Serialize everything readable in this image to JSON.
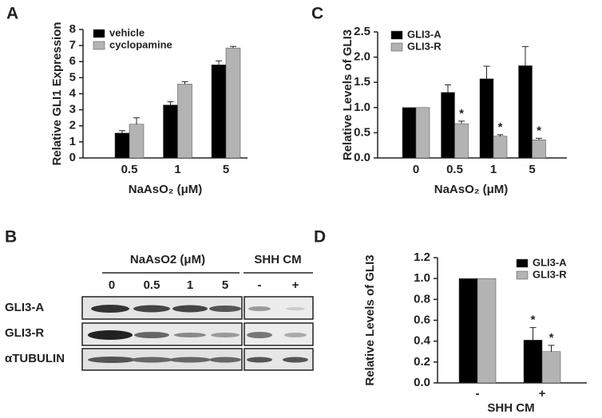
{
  "chart_data": [
    {
      "type": "bar",
      "panel_label": "A",
      "y_label": "Relative GLI1 Expression",
      "x_label": "NaAsO₂ (μM)",
      "categories": [
        "0.5",
        "1",
        "5"
      ],
      "series": [
        {
          "name": "vehicle",
          "color": "#000000",
          "values": [
            1.55,
            3.3,
            5.8
          ],
          "errors": [
            0.15,
            0.2,
            0.25
          ]
        },
        {
          "name": "cyclopamine",
          "color": "#b3b3b3",
          "values": [
            2.1,
            4.6,
            6.85
          ],
          "errors": [
            0.4,
            0.15,
            0.1
          ]
        }
      ],
      "ylim": [
        0,
        8
      ],
      "yticks": [
        0,
        1,
        2,
        3,
        4,
        5,
        6,
        7,
        8
      ]
    },
    {
      "type": "bar",
      "panel_label": "C",
      "y_label": "Relative Levels of GLI3",
      "x_label": "NaAsO₂ (μM)",
      "categories": [
        "0",
        "0.5",
        "1",
        "5"
      ],
      "series": [
        {
          "name": "GLI3-A",
          "color": "#000000",
          "values": [
            1.0,
            1.3,
            1.57,
            1.83
          ],
          "errors": [
            0,
            0.15,
            0.25,
            0.38
          ],
          "markers": [
            null,
            null,
            null,
            null
          ]
        },
        {
          "name": "GLI3-R",
          "color": "#b3b3b3",
          "values": [
            1.0,
            0.68,
            0.43,
            0.36
          ],
          "errors": [
            0,
            0.05,
            0.03,
            0.03
          ],
          "markers": [
            null,
            "*",
            "*",
            "*"
          ]
        }
      ],
      "ylim": [
        0,
        2.5
      ],
      "yticks": [
        {
          "value": 0,
          "label": "0.0"
        },
        0.5,
        {
          "value": 1,
          "label": "1.0"
        },
        1.5,
        {
          "value": 2,
          "label": "2.0"
        },
        2.5
      ]
    },
    {
      "type": "bar",
      "panel_label": "D",
      "y_label": "Relative Levels of GLI3",
      "x_label": "SHH CM",
      "categories": [
        "-",
        "+"
      ],
      "series": [
        {
          "name": "GLI3-A",
          "color": "#000000",
          "values": [
            1.0,
            0.41
          ],
          "errors": [
            0,
            0.12
          ],
          "markers": [
            null,
            "*"
          ]
        },
        {
          "name": "GLI3-R",
          "color": "#b3b3b3",
          "values": [
            1.0,
            0.3
          ],
          "errors": [
            0,
            0.06
          ],
          "markers": [
            null,
            "*"
          ]
        }
      ],
      "ylim": [
        0,
        1.2
      ],
      "yticks": [
        {
          "value": 0,
          "label": "0.0"
        },
        0.2,
        0.4,
        0.6,
        0.8,
        {
          "value": 1,
          "label": "1.0"
        },
        1.2
      ]
    }
  ],
  "blot": {
    "panel_label": "B",
    "group1": "NaAsO2 (μM)",
    "group2": "SHH CM",
    "lanes1": [
      "0",
      "0.5",
      "1",
      "5"
    ],
    "lanes2": [
      "-",
      "+"
    ],
    "rows": [
      "GLI3-A",
      "GLI3-R",
      "αTUBULIN"
    ]
  }
}
